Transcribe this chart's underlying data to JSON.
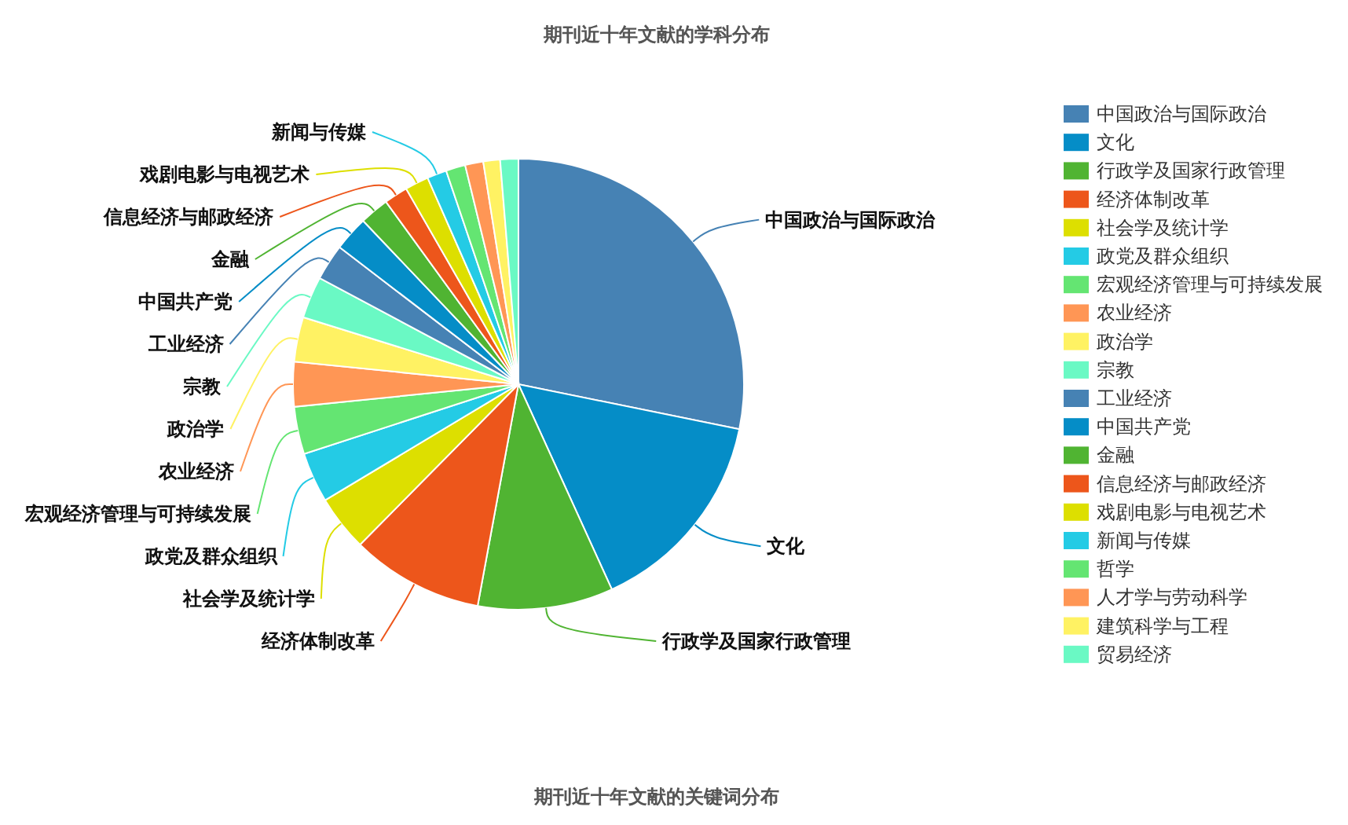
{
  "chart_data": {
    "type": "pie",
    "title": "期刊近十年文献的学科分布",
    "categories": [
      "中国政治与国际政治",
      "文化",
      "行政学及国家行政管理",
      "经济体制改革",
      "社会学及统计学",
      "政党及群众组织",
      "宏观经济管理与可持续发展",
      "农业经济",
      "政治学",
      "宗教",
      "工业经济",
      "中国共产党",
      "金融",
      "信息经济与邮政经济",
      "戏剧电影与电视艺术",
      "新闻与传媒",
      "哲学",
      "人才学与劳动科学",
      "建筑科学与工程",
      "贸易经济"
    ],
    "values": [
      28.2,
      15.0,
      9.7,
      9.5,
      4.0,
      3.6,
      3.4,
      3.2,
      3.2,
      3.0,
      2.6,
      2.5,
      2.1,
      1.7,
      1.7,
      1.4,
      1.4,
      1.3,
      1.2,
      1.3
    ],
    "colors": [
      "#4682b4",
      "#058dc7",
      "#50b432",
      "#ed561b",
      "#dddf00",
      "#24cbe5",
      "#64e572",
      "#ff9655",
      "#fff263",
      "#6af9c4",
      "#4682b4",
      "#058dc7",
      "#50b432",
      "#ed561b",
      "#dddf00",
      "#24cbe5",
      "#64e572",
      "#ff9655",
      "#fff263",
      "#6af9c4"
    ],
    "legend": "right",
    "annotations": [
      "期刊近十年文献的关键词分布"
    ]
  }
}
